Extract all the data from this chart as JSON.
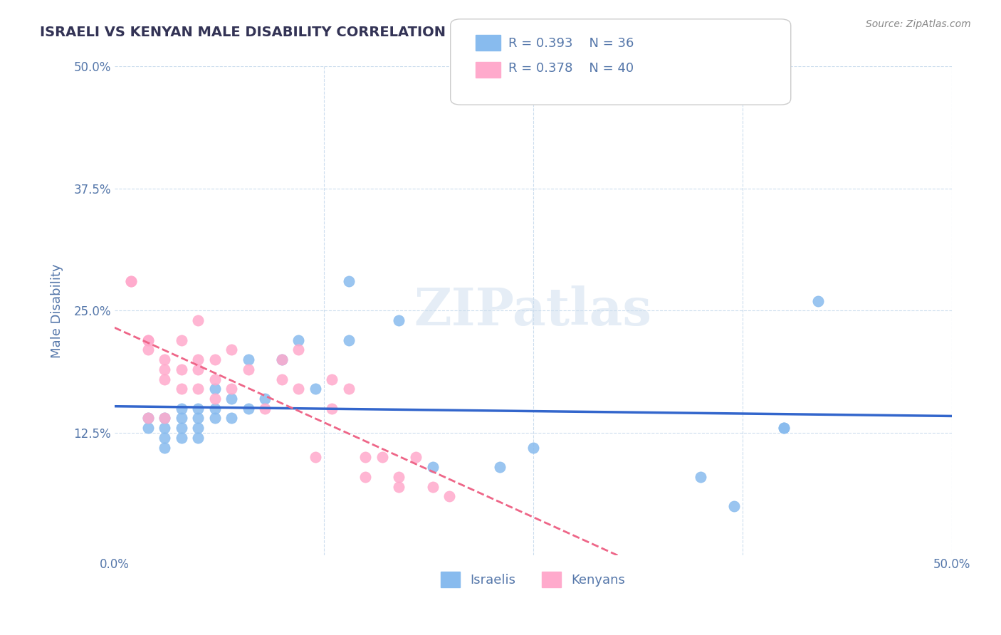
{
  "title": "ISRAELI VS KENYAN MALE DISABILITY CORRELATION CHART",
  "source": "Source: ZipAtlas.com",
  "xlabel": "",
  "ylabel": "Male Disability",
  "xlim": [
    0,
    0.5
  ],
  "ylim": [
    0,
    0.5
  ],
  "xticks": [
    0.0,
    0.125,
    0.25,
    0.375,
    0.5
  ],
  "xtick_labels": [
    "0.0%",
    "",
    "",
    "",
    "50.0%"
  ],
  "yticks": [
    0.0,
    0.125,
    0.25,
    0.375,
    0.5
  ],
  "ytick_labels": [
    "",
    "12.5%",
    "25.0%",
    "37.5%",
    "50.0%"
  ],
  "legend_R1": "R = 0.393",
  "legend_N1": "N = 36",
  "legend_R2": "R = 0.378",
  "legend_N2": "N = 40",
  "legend_label1": "Israelis",
  "legend_label2": "Kenyans",
  "israeli_color": "#88bbee",
  "kenyan_color": "#ffaacc",
  "israeli_line_color": "#3366cc",
  "kenyan_line_color": "#ee6688",
  "watermark": "ZIPatlas",
  "background_color": "#ffffff",
  "grid_color": "#ccddee",
  "title_color": "#333355",
  "axis_label_color": "#5577aa",
  "tick_color": "#5577aa",
  "israelis_x": [
    0.02,
    0.02,
    0.03,
    0.03,
    0.03,
    0.03,
    0.04,
    0.04,
    0.04,
    0.04,
    0.05,
    0.05,
    0.05,
    0.05,
    0.06,
    0.06,
    0.06,
    0.07,
    0.07,
    0.08,
    0.08,
    0.09,
    0.1,
    0.11,
    0.12,
    0.14,
    0.14,
    0.17,
    0.19,
    0.23,
    0.25,
    0.35,
    0.37,
    0.4,
    0.4,
    0.42
  ],
  "israelis_y": [
    0.14,
    0.13,
    0.14,
    0.13,
    0.12,
    0.11,
    0.15,
    0.14,
    0.13,
    0.12,
    0.15,
    0.14,
    0.13,
    0.12,
    0.17,
    0.15,
    0.14,
    0.16,
    0.14,
    0.15,
    0.2,
    0.16,
    0.2,
    0.22,
    0.17,
    0.28,
    0.22,
    0.24,
    0.09,
    0.09,
    0.11,
    0.08,
    0.05,
    0.13,
    0.13,
    0.26
  ],
  "kenyans_x": [
    0.01,
    0.01,
    0.02,
    0.02,
    0.02,
    0.02,
    0.03,
    0.03,
    0.03,
    0.03,
    0.04,
    0.04,
    0.04,
    0.05,
    0.05,
    0.05,
    0.05,
    0.06,
    0.06,
    0.06,
    0.07,
    0.07,
    0.08,
    0.09,
    0.1,
    0.1,
    0.11,
    0.11,
    0.12,
    0.13,
    0.13,
    0.14,
    0.15,
    0.15,
    0.16,
    0.17,
    0.17,
    0.18,
    0.19,
    0.2
  ],
  "kenyans_y": [
    0.28,
    0.28,
    0.22,
    0.22,
    0.21,
    0.14,
    0.2,
    0.19,
    0.18,
    0.14,
    0.22,
    0.19,
    0.17,
    0.24,
    0.2,
    0.19,
    0.17,
    0.2,
    0.18,
    0.16,
    0.21,
    0.17,
    0.19,
    0.15,
    0.2,
    0.18,
    0.21,
    0.17,
    0.1,
    0.18,
    0.15,
    0.17,
    0.1,
    0.08,
    0.1,
    0.08,
    0.07,
    0.1,
    0.07,
    0.06
  ]
}
